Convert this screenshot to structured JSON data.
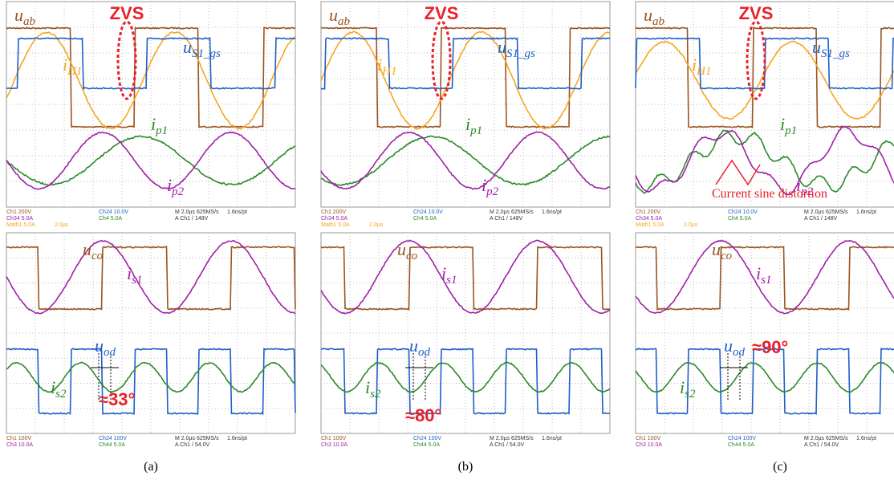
{
  "panels": [
    {
      "caption": "(a)",
      "top": {
        "annotation": "ZVS",
        "labels": [
          {
            "symbol": "u",
            "sub": "ab"
          },
          {
            "symbol": "i",
            "sub": "H1"
          },
          {
            "symbol": "u",
            "sub": "S1_gs"
          },
          {
            "symbol": "i",
            "sub": "p1"
          },
          {
            "symbol": "i",
            "sub": "p2"
          }
        ],
        "readouts": [
          "Ch1 200V",
          "Ch34 5.0A",
          "Math1 5.0A",
          "2.0µs",
          "Ch24 10.0V",
          "Ch4 5.0A",
          "M 2.0µs 625MS/s",
          "A Ch1 / 148V",
          "1.6ns/pt"
        ]
      },
      "bottom": {
        "angle": "≈33°",
        "labels": [
          {
            "symbol": "u",
            "sub": "co"
          },
          {
            "symbol": "i",
            "sub": "s1"
          },
          {
            "symbol": "u",
            "sub": "od"
          },
          {
            "symbol": "i",
            "sub": "s2"
          }
        ],
        "readouts": [
          "Ch1 100V",
          "Ch3 10.0A",
          "Ch24 100V",
          "Ch44 5.0A",
          "M 2.0µs 625MS/s",
          "A Ch1 / 54.0V",
          "1.6ns/pt"
        ]
      }
    },
    {
      "caption": "(b)",
      "top": {
        "annotation": "ZVS",
        "labels": [
          {
            "symbol": "u",
            "sub": "ab"
          },
          {
            "symbol": "i",
            "sub": "H1"
          },
          {
            "symbol": "u",
            "sub": "S1_gs"
          },
          {
            "symbol": "i",
            "sub": "p1"
          },
          {
            "symbol": "i",
            "sub": "p2"
          }
        ],
        "readouts": [
          "Ch1 200V",
          "Ch34 5.0A",
          "Math1 5.0A",
          "2.0µs",
          "Ch24 10.0V",
          "Ch4 5.0A",
          "M 2.0µs 625MS/s",
          "A Ch1 / 148V",
          "1.6ns/pt"
        ]
      },
      "bottom": {
        "angle": "≈80°",
        "labels": [
          {
            "symbol": "u",
            "sub": "co"
          },
          {
            "symbol": "i",
            "sub": "s1"
          },
          {
            "symbol": "u",
            "sub": "od"
          },
          {
            "symbol": "i",
            "sub": "s2"
          }
        ],
        "readouts": [
          "Ch1 100V",
          "Ch3 10.0A",
          "Ch24 100V",
          "Ch44 5.0A",
          "M 2.0µs 625MS/s",
          "A Ch1 / 54.0V",
          "1.6ns/pt"
        ]
      }
    },
    {
      "caption": "(c)",
      "top": {
        "annotation": "ZVS",
        "note": "Current sine distortion",
        "labels": [
          {
            "symbol": "u",
            "sub": "ab"
          },
          {
            "symbol": "i",
            "sub": "H1"
          },
          {
            "symbol": "u",
            "sub": "S1_gs"
          },
          {
            "symbol": "i",
            "sub": "p1"
          },
          {
            "symbol": "i",
            "sub": "p2"
          }
        ],
        "readouts": [
          "Ch1 200V",
          "Ch34 5.0A",
          "Math1 5.0A",
          "2.0µs",
          "Ch24 10.0V",
          "Ch4 5.0A",
          "M 2.0µs 625MS/s",
          "A Ch1 / 148V",
          "1.6ns/pt"
        ]
      },
      "bottom": {
        "angle": "≈90°",
        "labels": [
          {
            "symbol": "u",
            "sub": "co"
          },
          {
            "symbol": "i",
            "sub": "s1"
          },
          {
            "symbol": "u",
            "sub": "od"
          },
          {
            "symbol": "i",
            "sub": "s2"
          }
        ],
        "readouts": [
          "Ch1 100V",
          "Ch3 10.0A",
          "Ch24 100V",
          "Ch44 5.0A",
          "M 2.0µs 625MS/s",
          "A Ch1 / 54.0V",
          "1.6ns/pt"
        ]
      }
    }
  ]
}
